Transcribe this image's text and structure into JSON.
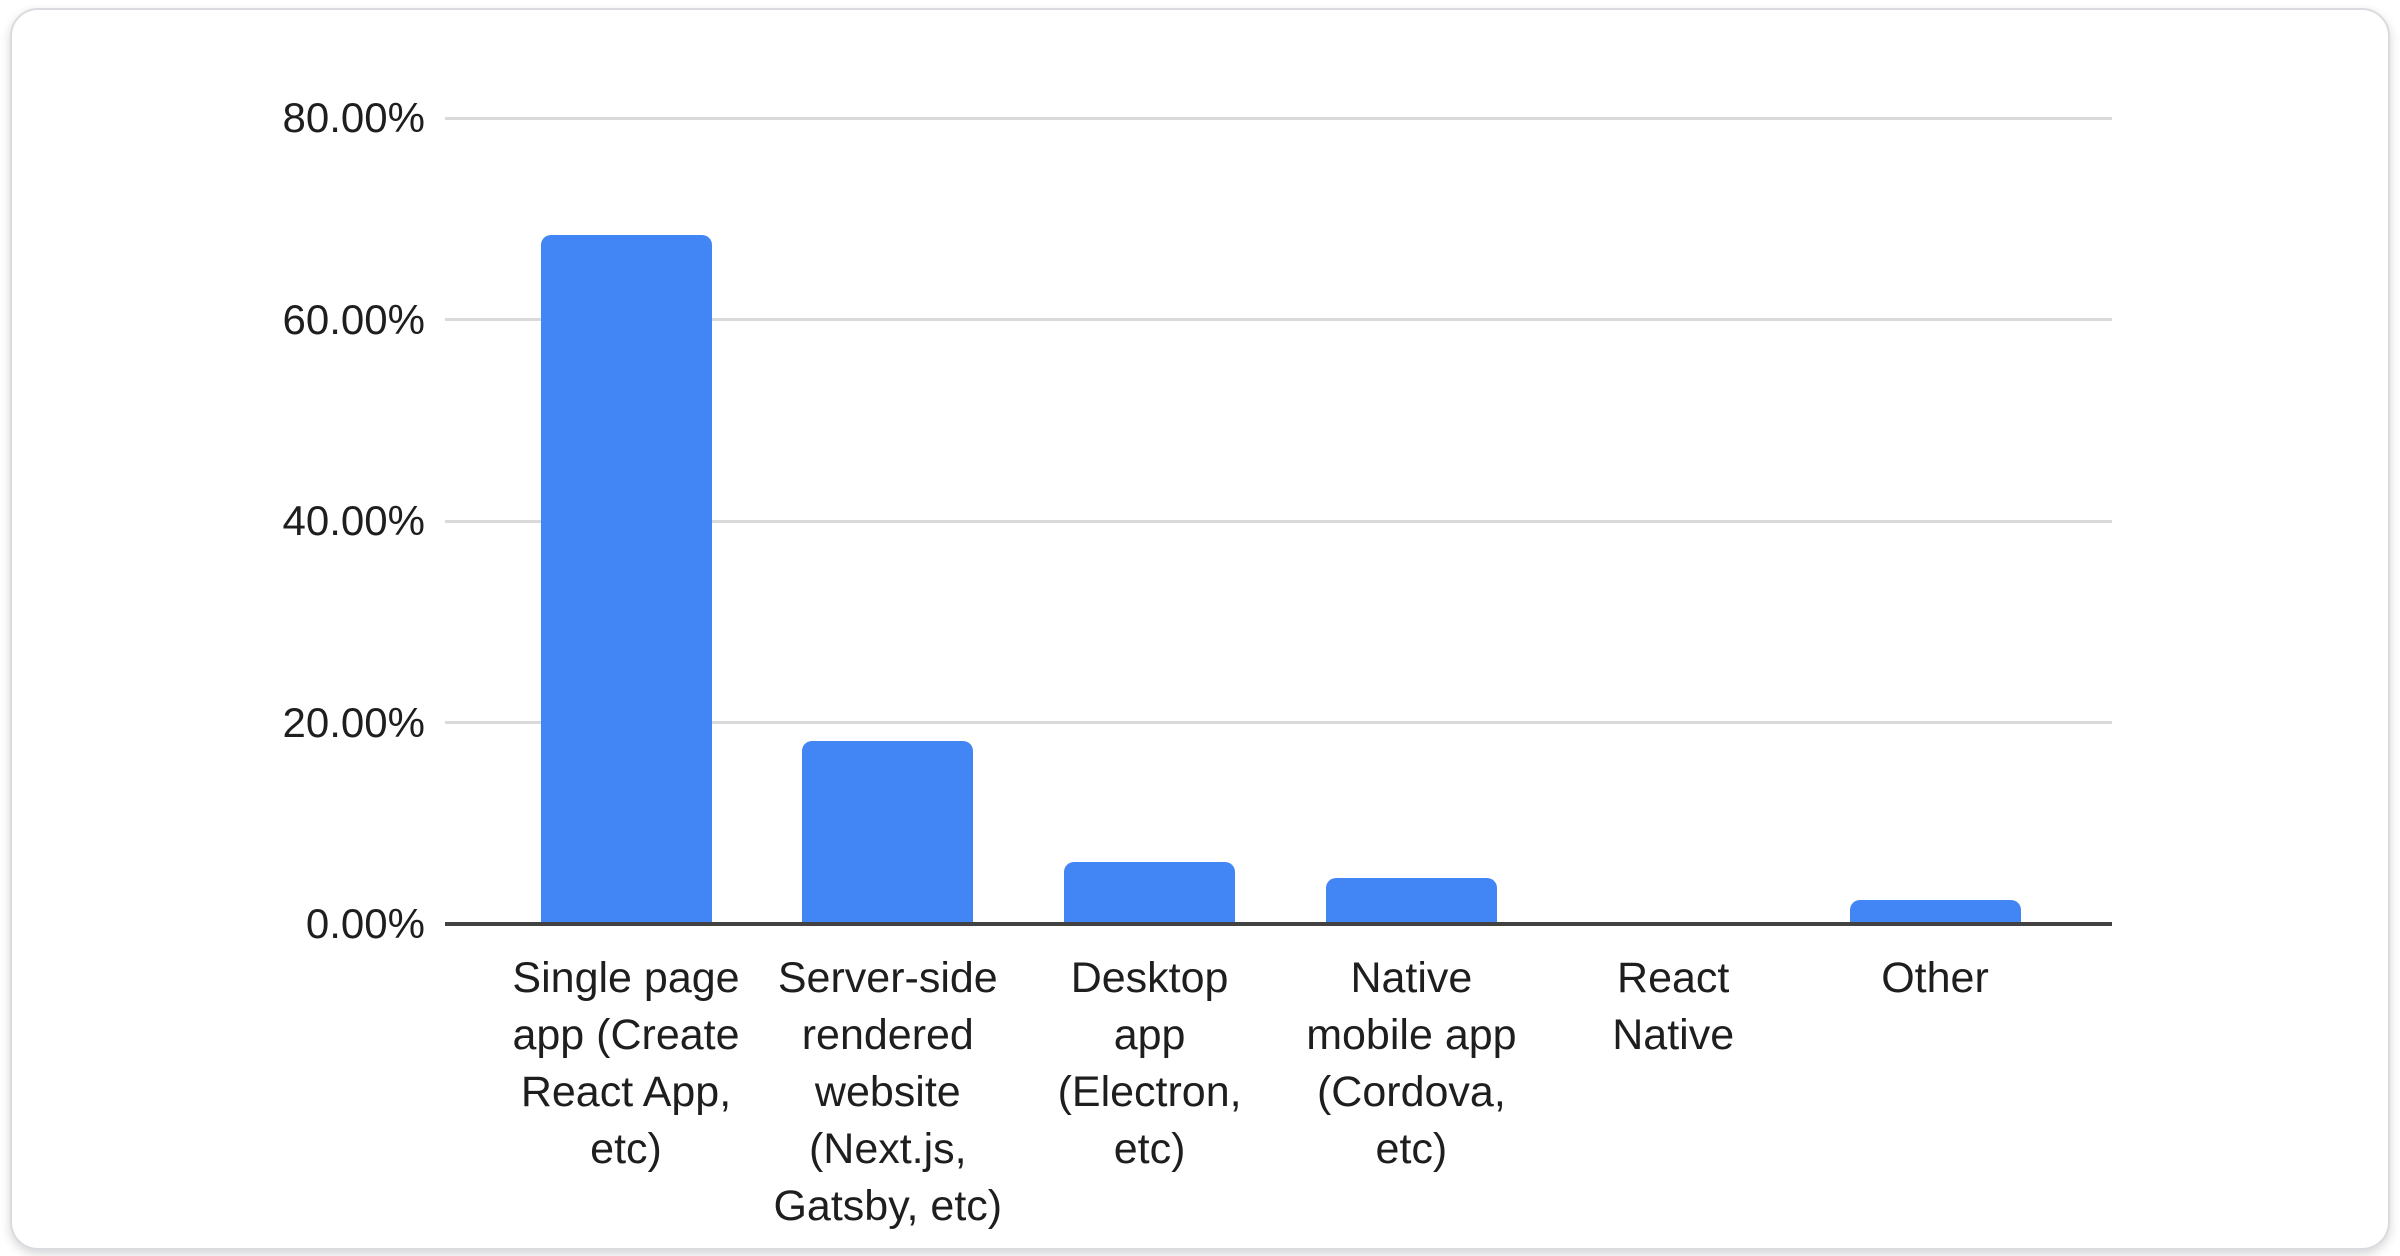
{
  "chart_data": {
    "type": "bar",
    "title": "",
    "xlabel": "",
    "ylabel": "",
    "legend": "none",
    "grid": true,
    "ylim": [
      0,
      80
    ],
    "y_tick_format": "percent",
    "y_ticks": [
      {
        "label": "80.00%",
        "value": 80
      },
      {
        "label": "60.00%",
        "value": 60
      },
      {
        "label": "40.00%",
        "value": 40
      },
      {
        "label": "20.00%",
        "value": 20
      },
      {
        "label": "0.00%",
        "value": 0
      }
    ],
    "categories": [
      "Single page app (Create React App, etc)",
      "Server-side rendered website (Next.js, Gatsby, etc)",
      "Desktop app (Electron, etc)",
      "Native mobile app (Cordova, etc)",
      "React Native",
      "Other"
    ],
    "category_lines": [
      [
        "Single page",
        "app (Create",
        "React App,",
        "etc)"
      ],
      [
        "Server-side",
        "rendered",
        "website",
        "(Next.js,",
        "Gatsby, etc)"
      ],
      [
        "Desktop",
        "app",
        "(Electron,",
        "etc)"
      ],
      [
        "Native",
        "mobile app",
        "(Cordova,",
        "etc)"
      ],
      [
        "React",
        "Native"
      ],
      [
        "Other"
      ]
    ],
    "values": [
      68.4,
      18.2,
      6.2,
      4.6,
      0,
      2.4
    ],
    "unit": "%",
    "colors": {
      "bar": "#4285f4",
      "gridline": "#dadada",
      "baseline": "#424242",
      "tick_text": "#1e1e1e",
      "category_text": "#1e1e1e",
      "card_border": "#d9dbdf",
      "card_background": "#ffffff"
    }
  }
}
